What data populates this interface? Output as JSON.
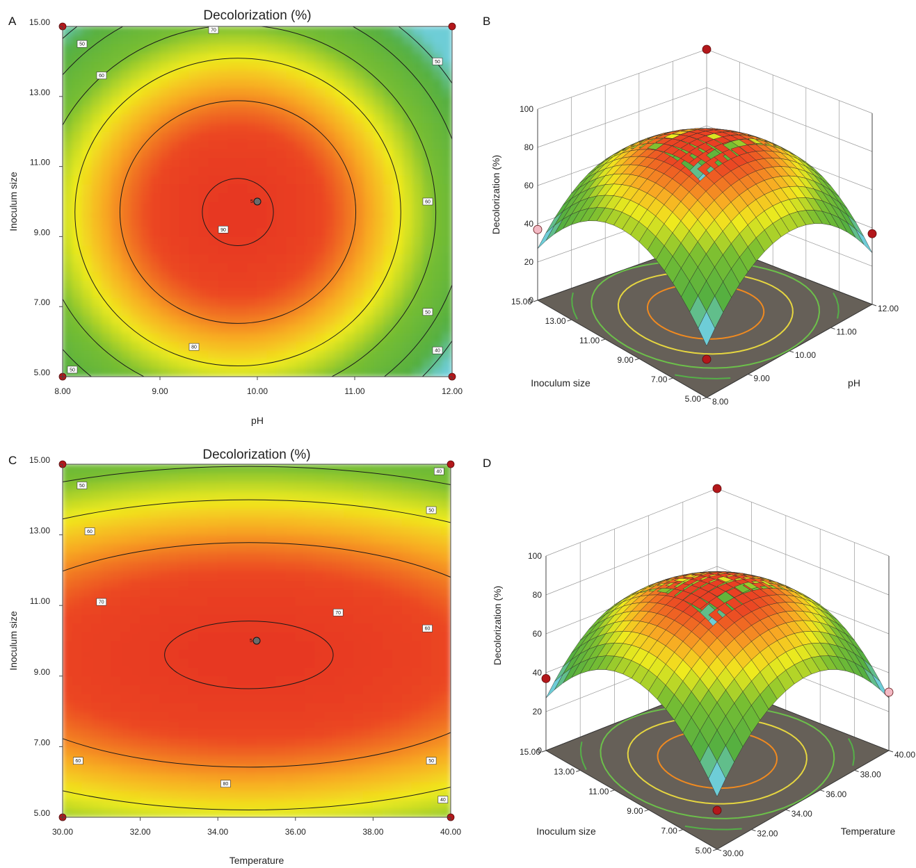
{
  "chart_data": [
    {
      "panel": "A",
      "type": "contour",
      "title": "Decolorization (%)",
      "xlabel": "pH",
      "ylabel": "Inoculum size",
      "xlim": [
        8,
        12
      ],
      "ylim": [
        5,
        15
      ],
      "x_ticks": [
        "8.00",
        "9.00",
        "10.00",
        "11.00",
        "12.00"
      ],
      "y_ticks": [
        "5.00",
        "7.00",
        "9.00",
        "11.00",
        "13.00",
        "15.00"
      ],
      "model": {
        "max": 91,
        "x0": 9.8,
        "y0": 9.7,
        "ax": 30,
        "ay": 6.8
      },
      "contour_levels": [
        40,
        50,
        60,
        70,
        80,
        90
      ],
      "contour_labels": [
        {
          "text": "50",
          "x": 8.2,
          "y": 14.5
        },
        {
          "text": "60",
          "x": 8.4,
          "y": 13.6
        },
        {
          "text": "70",
          "x": 9.55,
          "y": 14.9
        },
        {
          "text": "90",
          "x": 9.65,
          "y": 9.2
        },
        {
          "text": "80",
          "x": 9.35,
          "y": 5.85
        },
        {
          "text": "50",
          "x": 11.85,
          "y": 14.0
        },
        {
          "text": "60",
          "x": 11.75,
          "y": 10.0
        },
        {
          "text": "50",
          "x": 11.75,
          "y": 6.85
        },
        {
          "text": "40",
          "x": 11.85,
          "y": 5.75
        },
        {
          "text": "50",
          "x": 8.1,
          "y": 5.2
        }
      ],
      "center_point": {
        "x": 10,
        "y": 10,
        "label": "5"
      },
      "design_points": [
        {
          "x": 8,
          "y": 15
        },
        {
          "x": 12,
          "y": 15
        },
        {
          "x": 8,
          "y": 5
        },
        {
          "x": 12,
          "y": 5
        }
      ]
    },
    {
      "panel": "B",
      "type": "surface",
      "zlabel": "Decolorization (%)",
      "xlabel": "Inoculum size",
      "ylabel": "pH",
      "zlim": [
        0,
        100
      ],
      "z_ticks": [
        "0",
        "20",
        "40",
        "60",
        "80",
        "100"
      ],
      "x_ticks": [
        "15.00",
        "13.00",
        "11.00",
        "9.00",
        "7.00",
        "5.00"
      ],
      "y_ticks": [
        "8.00",
        "9.00",
        "10.00",
        "11.00",
        "12.00"
      ]
    },
    {
      "panel": "C",
      "type": "contour",
      "title": "Decolorization (%)",
      "xlabel": "Temperature",
      "ylabel": "Inoculum size",
      "xlim": [
        30,
        40
      ],
      "ylim": [
        5,
        15
      ],
      "x_ticks": [
        "30.00",
        "32.00",
        "34.00",
        "36.00",
        "38.00",
        "40.00"
      ],
      "y_ticks": [
        "5.00",
        "7.00",
        "9.00",
        "11.00",
        "13.00",
        "15.00"
      ],
      "model": {
        "max": 91,
        "x0": 34.8,
        "y0": 9.6,
        "ax": 5.3,
        "ay": 6.8
      },
      "contour_levels": [
        40,
        50,
        60,
        70,
        80,
        90
      ],
      "contour_labels": [
        {
          "text": "50",
          "x": 30.5,
          "y": 14.4
        },
        {
          "text": "60",
          "x": 30.7,
          "y": 13.1
        },
        {
          "text": "70",
          "x": 31.0,
          "y": 11.1
        },
        {
          "text": "80",
          "x": 34.2,
          "y": 5.95
        },
        {
          "text": "60",
          "x": 30.4,
          "y": 6.6
        },
        {
          "text": "40",
          "x": 39.7,
          "y": 14.8
        },
        {
          "text": "50",
          "x": 39.5,
          "y": 13.7
        },
        {
          "text": "70",
          "x": 37.1,
          "y": 10.8
        },
        {
          "text": "60",
          "x": 39.4,
          "y": 10.35
        },
        {
          "text": "50",
          "x": 39.5,
          "y": 6.6
        },
        {
          "text": "40",
          "x": 39.8,
          "y": 5.5
        }
      ],
      "center_point": {
        "x": 35,
        "y": 10,
        "label": "5"
      },
      "design_points": [
        {
          "x": 30,
          "y": 15
        },
        {
          "x": 40,
          "y": 15
        },
        {
          "x": 30,
          "y": 5
        },
        {
          "x": 40,
          "y": 5
        }
      ]
    },
    {
      "panel": "D",
      "type": "surface",
      "zlabel": "Decolorization (%)",
      "xlabel": "Inoculum size",
      "ylabel": "Temperature",
      "zlim": [
        0,
        100
      ],
      "z_ticks": [
        "0",
        "20",
        "40",
        "60",
        "80",
        "100"
      ],
      "x_ticks": [
        "15.00",
        "13.00",
        "11.00",
        "9.00",
        "7.00",
        "5.00"
      ],
      "y_ticks": [
        "30.00",
        "32.00",
        "34.00",
        "36.00",
        "38.00",
        "40.00"
      ]
    }
  ]
}
